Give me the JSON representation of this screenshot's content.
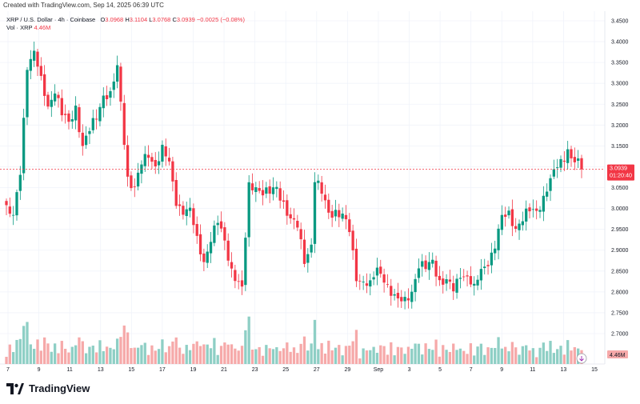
{
  "header": {
    "created": "Created with TradingView.com, Sep 14, 2025 06:39 UTC",
    "title": "XRP / U.S. Dollar · 4h · Coinbase",
    "o_label": "O",
    "o_value": "3.0968",
    "h_label": "H",
    "h_value": "3.1104",
    "l_label": "L",
    "l_value": "3.0768",
    "c_label": "C",
    "c_value": "3.0939",
    "change": "−0.0025 (−0.08%)",
    "vol_label": "Vol · XRP",
    "vol_value": "4.46M"
  },
  "brand": {
    "name": "TradingView"
  },
  "colors": {
    "up": "#089981",
    "down": "#f23645",
    "vol_up": "#8ecfc5",
    "vol_down": "#f6a9a9",
    "price_tag": "#f23645",
    "vol_tag": "#f6a9a9"
  },
  "price_tag": {
    "price": "3.0939",
    "countdown": "01:20:40",
    "value": 3.0939
  },
  "vol_tag": {
    "label": "4.46M"
  },
  "chart_data": {
    "type": "candlestick",
    "title": "XRP / U.S. Dollar · 4h · Coinbase",
    "ylim": [
      2.66,
      3.47
    ],
    "y_ticks": [
      3.45,
      3.4,
      3.35,
      3.3,
      3.25,
      3.2,
      3.15,
      3.1,
      3.05,
      3.0,
      2.95,
      2.9,
      2.85,
      2.8,
      2.75,
      2.7
    ],
    "x_ticks": [
      "7",
      "9",
      "11",
      "13",
      "15",
      "17",
      "19",
      "21",
      "23",
      "25",
      "27",
      "29",
      "Sep",
      "3",
      "5",
      "7",
      "9",
      "11",
      "13",
      "15"
    ],
    "close_path": [
      [
        0,
        3.0
      ],
      [
        2,
        2.97
      ],
      [
        4,
        3.09
      ],
      [
        6,
        3.35
      ],
      [
        8,
        3.37
      ],
      [
        10,
        3.3
      ],
      [
        12,
        3.25
      ],
      [
        14,
        3.29
      ],
      [
        16,
        3.22
      ],
      [
        18,
        3.2
      ],
      [
        20,
        3.25
      ],
      [
        22,
        3.15
      ],
      [
        24,
        3.18
      ],
      [
        26,
        3.22
      ],
      [
        28,
        3.28
      ],
      [
        30,
        3.27
      ],
      [
        32,
        3.33
      ],
      [
        33,
        3.25
      ],
      [
        35,
        3.08
      ],
      [
        37,
        3.05
      ],
      [
        39,
        3.1
      ],
      [
        41,
        3.13
      ],
      [
        43,
        3.11
      ],
      [
        45,
        3.14
      ],
      [
        47,
        3.1
      ],
      [
        49,
        3.02
      ],
      [
        51,
        3.0
      ],
      [
        53,
        2.99
      ],
      [
        55,
        2.92
      ],
      [
        57,
        2.88
      ],
      [
        59,
        2.93
      ],
      [
        61,
        2.96
      ],
      [
        63,
        2.92
      ],
      [
        65,
        2.86
      ],
      [
        67,
        2.82
      ],
      [
        68,
        2.8
      ],
      [
        70,
        3.05
      ],
      [
        72,
        3.06
      ],
      [
        74,
        3.04
      ],
      [
        76,
        3.03
      ],
      [
        78,
        3.05
      ],
      [
        80,
        3.02
      ],
      [
        82,
        2.97
      ],
      [
        84,
        2.95
      ],
      [
        86,
        2.88
      ],
      [
        88,
        2.92
      ],
      [
        89,
        3.07
      ],
      [
        91,
        3.03
      ],
      [
        93,
        2.99
      ],
      [
        95,
        3.0
      ],
      [
        97,
        2.98
      ],
      [
        99,
        2.94
      ],
      [
        101,
        2.84
      ],
      [
        103,
        2.83
      ],
      [
        105,
        2.81
      ],
      [
        107,
        2.85
      ],
      [
        109,
        2.84
      ],
      [
        111,
        2.8
      ],
      [
        113,
        2.77
      ],
      [
        115,
        2.78
      ],
      [
        117,
        2.81
      ],
      [
        119,
        2.86
      ],
      [
        121,
        2.85
      ],
      [
        123,
        2.88
      ],
      [
        125,
        2.83
      ],
      [
        127,
        2.82
      ],
      [
        129,
        2.8
      ],
      [
        131,
        2.85
      ],
      [
        133,
        2.84
      ],
      [
        135,
        2.8
      ],
      [
        137,
        2.85
      ],
      [
        139,
        2.88
      ],
      [
        141,
        2.91
      ],
      [
        143,
        2.97
      ],
      [
        145,
        2.99
      ],
      [
        147,
        2.96
      ],
      [
        149,
        2.97
      ],
      [
        151,
        2.99
      ],
      [
        153,
        3.0
      ],
      [
        155,
        3.03
      ],
      [
        157,
        3.06
      ],
      [
        159,
        3.1
      ],
      [
        161,
        3.13
      ],
      [
        162,
        3.15
      ],
      [
        163,
        3.12
      ],
      [
        165,
        3.1
      ],
      [
        166,
        3.094
      ]
    ],
    "volume_max_label": "4.46M"
  }
}
